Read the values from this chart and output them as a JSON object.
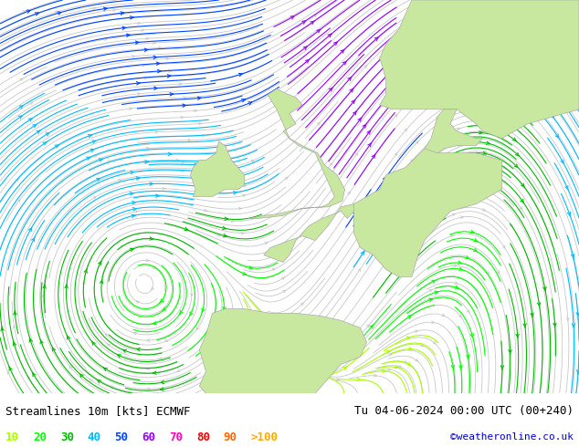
{
  "title_left": "Streamlines 10m [kts] ECMWF",
  "title_right": "Tu 04-06-2024 00:00 UTC (00+240)",
  "credit": "©weatheronline.co.uk",
  "legend_values": [
    "10",
    "20",
    "30",
    "40",
    "50",
    "60",
    "70",
    "80",
    "90",
    ">100"
  ],
  "legend_colors": [
    "#aaff00",
    "#00ff00",
    "#00bb00",
    "#00bbff",
    "#0044ff",
    "#9900ff",
    "#ff00bb",
    "#ff0000",
    "#ff6600",
    "#ffaa00"
  ],
  "background_color": "#e0e0e0",
  "land_color": "#c8e8a0",
  "land_edge": "#aaaaaa",
  "fig_width": 6.34,
  "fig_height": 4.9,
  "dpi": 100,
  "lon_min": -25,
  "lon_max": 20,
  "lat_min": 38,
  "lat_max": 65,
  "footer_bg": "#ffffff",
  "footer_text_color": "#000000",
  "credit_color": "#0000cc",
  "streamline_color": "#c8c8c8",
  "lp_lon": -14.0,
  "lp_lat": 46.0,
  "lp_strength": 6.0
}
